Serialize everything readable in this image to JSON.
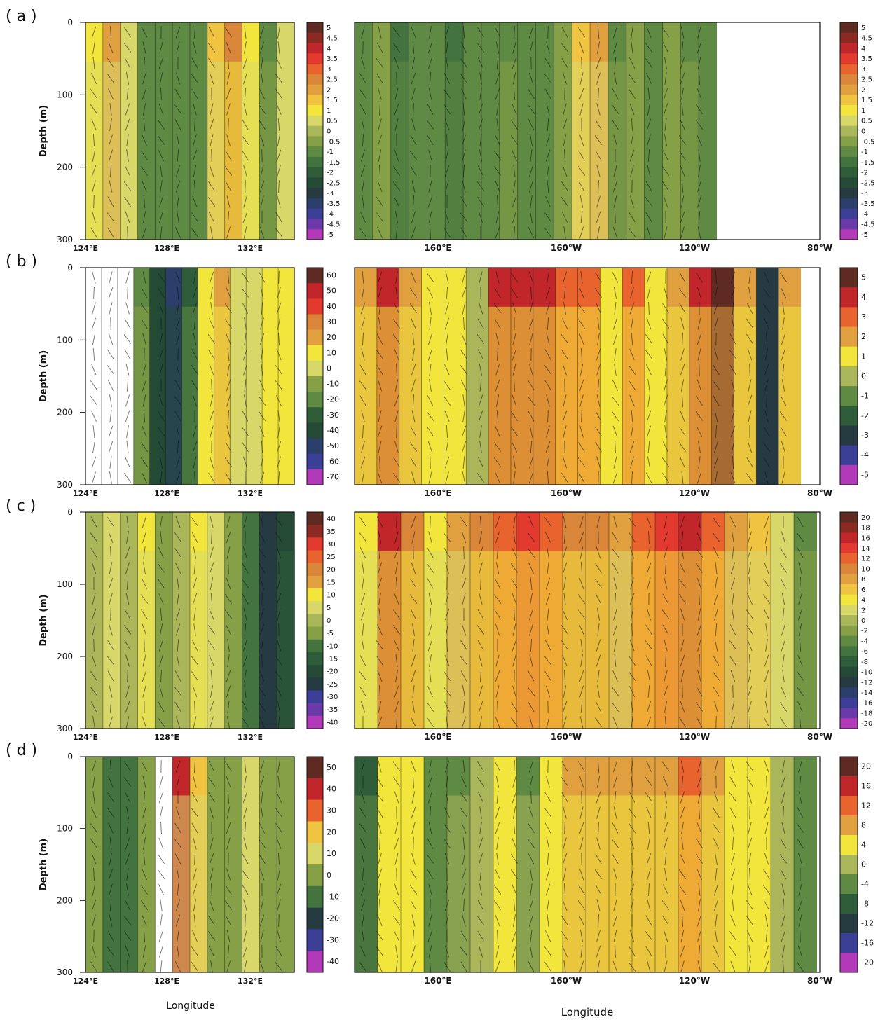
{
  "chart_data": [
    {
      "type": "heatmap",
      "panel_label": "( a )",
      "ylabel": "Depth (m)",
      "yticks": [
        "0",
        "100",
        "200",
        "300"
      ],
      "ylim": [
        300,
        0
      ],
      "left_xticks": [
        "124°E",
        "128°E",
        "132°E"
      ],
      "right_xticks": [
        "160°E",
        "160°W",
        "120°W",
        "80°W"
      ],
      "left_colorbar": [
        "5",
        "4.5",
        "4",
        "3.5",
        "3",
        "2.5",
        "2",
        "1.5",
        "1",
        "0.5",
        "0",
        "-0.5",
        "-1",
        "-1.5",
        "-2",
        "-2.5",
        "-3",
        "-3.5",
        "-4",
        "-4.5",
        "-5"
      ],
      "right_colorbar": [
        "5",
        "4.5",
        "4",
        "3.5",
        "3",
        "2.5",
        "2",
        "1.5",
        "1",
        "0.5",
        "0",
        "-0.5",
        "-1",
        "-1.5",
        "-2",
        "-2.5",
        "-3",
        "-3.5",
        "-4",
        "-4.5",
        "-5"
      ],
      "left_columns": [
        0.6,
        1.6,
        0.4,
        -1.2,
        -1.4,
        -1.3,
        -1.4,
        1.2,
        2.4,
        1.0,
        -1.0,
        0.3
      ],
      "right_columns": [
        -1.2,
        -0.8,
        -1.6,
        -1.3,
        -1.4,
        -1.5,
        -1.2,
        -1.3,
        -1.1,
        -1.4,
        -1.2,
        -0.6,
        1.3,
        1.8,
        -1.0,
        -0.8,
        -1.2,
        -0.8,
        -1.0,
        -1.2
      ]
    },
    {
      "type": "heatmap",
      "panel_label": "( b )",
      "ylabel": "Depth (m)",
      "yticks": [
        "0",
        "100",
        "200",
        "300"
      ],
      "ylim": [
        300,
        0
      ],
      "left_xticks": [
        "124°E",
        "128°E",
        "132°E"
      ],
      "right_xticks": [
        "160°E",
        "160°W",
        "120°W",
        "80°W"
      ],
      "left_colorbar": [
        "60",
        "50",
        "40",
        "30",
        "20",
        "10",
        "0",
        "-10",
        "-20",
        "-30",
        "-40",
        "-50",
        "-60",
        "-70"
      ],
      "right_colorbar": [
        "5",
        "4",
        "3",
        "2",
        "1",
        "0",
        "-1",
        "-2",
        "-3",
        "-4",
        "-5"
      ],
      "left_columns": [
        null,
        null,
        null,
        -20,
        -45,
        -55,
        -30,
        5,
        12,
        -8,
        -6,
        8,
        6
      ],
      "right_columns": [
        2.0,
        3.5,
        1.2,
        0.4,
        0.2,
        -0.5,
        3.5,
        4.0,
        3.8,
        2.6,
        2.8,
        0.8,
        2.2,
        0.6,
        1.4,
        3.8,
        4.2,
        1.2,
        -3.5,
        2.0
      ]
    },
    {
      "type": "heatmap",
      "panel_label": "( c )",
      "ylabel": "Depth (m)",
      "yticks": [
        "0",
        "100",
        "200",
        "300"
      ],
      "ylim": [
        300,
        0
      ],
      "left_xticks": [
        "124°E",
        "128°E",
        "132°E"
      ],
      "right_xticks": [
        "160°E",
        "160°W",
        "120°W",
        "80°W"
      ],
      "left_colorbar": [
        "40",
        "35",
        "30",
        "25",
        "20",
        "15",
        "10",
        "5",
        "0",
        "-5",
        "-10",
        "-15",
        "-20",
        "-25",
        "-30",
        "-35",
        "-40"
      ],
      "right_colorbar": [
        "20",
        "18",
        "16",
        "14",
        "12",
        "10",
        "8",
        "6",
        "4",
        "2",
        "0",
        "-2",
        "-4",
        "-6",
        "-8",
        "-10",
        "-12",
        "-14",
        "-16",
        "-18",
        "-20"
      ],
      "left_columns": [
        -4,
        2,
        -2,
        6,
        -6,
        -2,
        10,
        4,
        -8,
        -14,
        -28,
        -20
      ],
      "right_columns": [
        4,
        16,
        10,
        4,
        8,
        10,
        12,
        14,
        12,
        10,
        10,
        8,
        12,
        14,
        16,
        12,
        8,
        6,
        2,
        -4
      ]
    },
    {
      "type": "heatmap",
      "panel_label": "( d )",
      "ylabel": "Depth (m)",
      "xlabel": "Longitude",
      "yticks": [
        "0",
        "100",
        "200",
        "300"
      ],
      "ylim": [
        300,
        0
      ],
      "left_xticks": [
        "124°E",
        "128°E",
        "132°E"
      ],
      "right_xticks": [
        "160°E",
        "160°W",
        "120°W",
        "80°W"
      ],
      "left_colorbar": [
        "50",
        "40",
        "30",
        "20",
        "10",
        "0",
        "-10",
        "-20",
        "-30",
        "-40"
      ],
      "right_colorbar": [
        "20",
        "16",
        "12",
        "8",
        "4",
        "0",
        "-4",
        "-8",
        "-12",
        "-16",
        "-20"
      ],
      "left_columns": [
        -8,
        -12,
        -14,
        -4,
        null,
        36,
        14,
        -6,
        -2,
        2,
        -8,
        -6
      ],
      "right_columns": [
        -8,
        2,
        4,
        -6,
        -4,
        -2,
        2,
        -4,
        1,
        6,
        6,
        8,
        6,
        8,
        10,
        6,
        2,
        4,
        -2,
        -6
      ]
    }
  ]
}
